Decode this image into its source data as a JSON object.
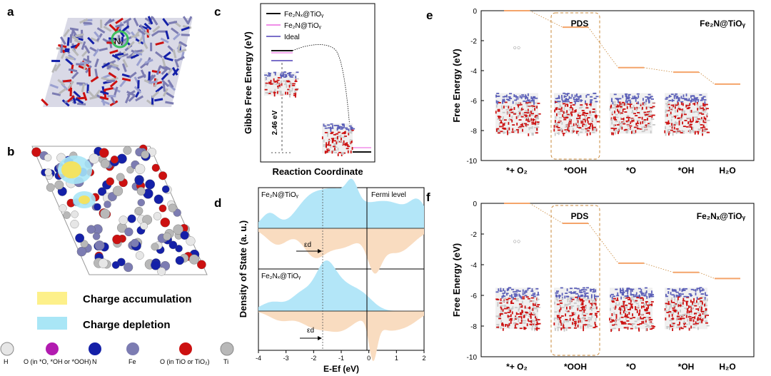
{
  "panels": {
    "a": {
      "label": "a",
      "atom_label": "Nᵥ"
    },
    "b": {
      "label": "b"
    },
    "c": {
      "label": "c"
    },
    "d": {
      "label": "d"
    },
    "e": {
      "label": "e"
    },
    "f": {
      "label": "f"
    }
  },
  "charge_legend": {
    "accumulation": "Charge accumulation",
    "depletion": "Charge depletion",
    "accumulation_color": "#fdf08a",
    "depletion_color": "#a9e6f6"
  },
  "atom_legend": [
    {
      "symbol": "H",
      "color": "#e6e6e6"
    },
    {
      "symbol": "O (in *O, *OH or *OOH)",
      "color": "#b21bb0"
    },
    {
      "symbol": "N",
      "color": "#1420a8"
    },
    {
      "symbol": "Fe",
      "color": "#7c7cb2"
    },
    {
      "symbol": "O (in TiO or TiO₂)",
      "color": "#cc1010"
    },
    {
      "symbol": "Ti",
      "color": "#b8b8b8"
    }
  ],
  "panel_c": {
    "ylabel": "Gibbs Free Energy (eV)",
    "xlabel": "Reaction Coordinate",
    "legend": [
      {
        "label": "Fe₂Nₓ@TiOᵧ",
        "color": "#111111"
      },
      {
        "label": "Fe₂N@TiOᵧ",
        "color": "#f08ee8"
      },
      {
        "label": "Ideal",
        "color": "#7a6fc9"
      }
    ],
    "annotation": "2.46 eV"
  },
  "panel_d": {
    "ylabel": "Density of State (a. u.)",
    "xlabel": "E-Ef (eV)",
    "fermi_label": "Fermi level",
    "top_title": "Fe₂N@TiOᵧ",
    "bottom_title": "Fe₂Nₓ@TiOᵧ",
    "ed_label": "εd",
    "xticks": [
      "-4",
      "-3",
      "-2",
      "-1",
      "0",
      "1",
      "2"
    ],
    "up_color": "#b3e6f8",
    "down_color": "#f9dcc0"
  },
  "chart_data": [
    {
      "type": "line",
      "id": "e",
      "title": "Fe₂N@TiOᵧ",
      "xlabel": "",
      "ylabel": "Free Energy (eV)",
      "ylim": [
        -10,
        0
      ],
      "yticks": [
        "0",
        "-2",
        "-4",
        "-6",
        "-8",
        "-10"
      ],
      "categories": [
        "*+ O₂",
        "*OOH",
        "*O",
        "*OH",
        "H₂O"
      ],
      "values": [
        0.0,
        -1.1,
        -3.8,
        -4.1,
        -4.9
      ],
      "annotation": "PDS",
      "color": "#f4a46a"
    },
    {
      "type": "line",
      "id": "f",
      "title": "Fe₂Nₓ@TiOᵧ",
      "xlabel": "",
      "ylabel": "Free Energy (eV)",
      "ylim": [
        -10,
        0
      ],
      "yticks": [
        "0",
        "-2",
        "-4",
        "-6",
        "-8",
        "-10"
      ],
      "categories": [
        "*+ O₂",
        "*OOH",
        "*O",
        "*OH",
        "H₂O"
      ],
      "values": [
        0.0,
        -1.3,
        -3.9,
        -4.5,
        -4.9
      ],
      "annotation": "PDS",
      "color": "#f4a46a"
    }
  ]
}
